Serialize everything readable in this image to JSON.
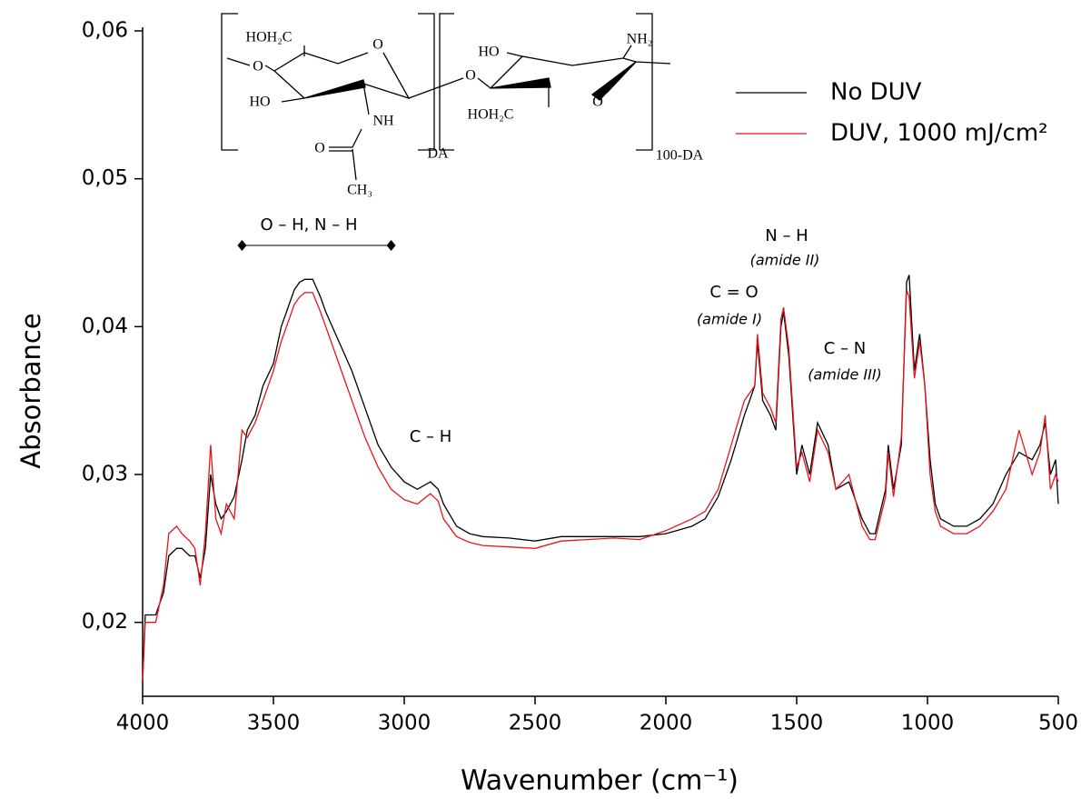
{
  "chart_data": {
    "type": "line",
    "xlabel": "Wavenumber (cm⁻¹)",
    "ylabel": "Absorbance",
    "x": [
      4000,
      3990,
      3950,
      3920,
      3900,
      3870,
      3850,
      3820,
      3800,
      3780,
      3760,
      3740,
      3720,
      3700,
      3680,
      3650,
      3620,
      3600,
      3570,
      3540,
      3500,
      3470,
      3450,
      3420,
      3400,
      3380,
      3350,
      3320,
      3300,
      3250,
      3200,
      3150,
      3100,
      3050,
      3000,
      2950,
      2900,
      2870,
      2850,
      2800,
      2750,
      2700,
      2600,
      2500,
      2400,
      2300,
      2200,
      2100,
      2000,
      1900,
      1850,
      1800,
      1750,
      1700,
      1680,
      1660,
      1650,
      1630,
      1600,
      1580,
      1560,
      1550,
      1530,
      1500,
      1480,
      1450,
      1420,
      1380,
      1350,
      1300,
      1250,
      1220,
      1200,
      1160,
      1150,
      1130,
      1100,
      1080,
      1070,
      1050,
      1030,
      1010,
      990,
      970,
      950,
      900,
      850,
      800,
      750,
      700,
      650,
      600,
      570,
      550,
      530,
      510,
      500
    ],
    "series": [
      {
        "name": "No DUV",
        "color": "#000000",
        "values": [
          0.016,
          0.0205,
          0.0205,
          0.022,
          0.0245,
          0.025,
          0.025,
          0.0245,
          0.0245,
          0.023,
          0.025,
          0.03,
          0.028,
          0.027,
          0.0275,
          0.0285,
          0.031,
          0.033,
          0.034,
          0.036,
          0.0375,
          0.04,
          0.041,
          0.0425,
          0.043,
          0.0432,
          0.0432,
          0.042,
          0.041,
          0.039,
          0.037,
          0.0345,
          0.032,
          0.0305,
          0.0295,
          0.029,
          0.0295,
          0.029,
          0.028,
          0.0265,
          0.026,
          0.0258,
          0.0257,
          0.0255,
          0.0258,
          0.0258,
          0.0258,
          0.0258,
          0.026,
          0.0265,
          0.027,
          0.0285,
          0.031,
          0.034,
          0.035,
          0.036,
          0.039,
          0.035,
          0.034,
          0.033,
          0.04,
          0.041,
          0.038,
          0.03,
          0.032,
          0.03,
          0.0335,
          0.032,
          0.029,
          0.0295,
          0.027,
          0.026,
          0.026,
          0.029,
          0.032,
          0.029,
          0.032,
          0.043,
          0.0435,
          0.037,
          0.0395,
          0.036,
          0.031,
          0.028,
          0.027,
          0.0265,
          0.0265,
          0.027,
          0.028,
          0.03,
          0.0315,
          0.031,
          0.032,
          0.0335,
          0.03,
          0.031,
          0.028
        ]
      },
      {
        "name": "DUV, 1000 mJ/cm²",
        "color": "#e8141b",
        "values": [
          0.016,
          0.02,
          0.02,
          0.0225,
          0.026,
          0.0265,
          0.026,
          0.0255,
          0.025,
          0.0225,
          0.026,
          0.032,
          0.027,
          0.026,
          0.028,
          0.027,
          0.033,
          0.0325,
          0.0335,
          0.035,
          0.037,
          0.039,
          0.04,
          0.0415,
          0.042,
          0.0423,
          0.0423,
          0.041,
          0.04,
          0.0375,
          0.035,
          0.0325,
          0.0305,
          0.029,
          0.0283,
          0.028,
          0.0287,
          0.0282,
          0.027,
          0.0258,
          0.0254,
          0.0252,
          0.0251,
          0.025,
          0.0255,
          0.0256,
          0.0257,
          0.0256,
          0.0262,
          0.027,
          0.0275,
          0.029,
          0.032,
          0.035,
          0.0355,
          0.036,
          0.0395,
          0.0355,
          0.0345,
          0.0335,
          0.0405,
          0.0413,
          0.0385,
          0.0305,
          0.0315,
          0.0295,
          0.033,
          0.0315,
          0.029,
          0.03,
          0.0265,
          0.0256,
          0.0256,
          0.0285,
          0.0315,
          0.0285,
          0.0325,
          0.0425,
          0.042,
          0.0365,
          0.039,
          0.036,
          0.03,
          0.0275,
          0.0265,
          0.026,
          0.026,
          0.0265,
          0.0275,
          0.029,
          0.033,
          0.03,
          0.0315,
          0.034,
          0.029,
          0.03,
          0.0295
        ]
      }
    ],
    "xlim": [
      4000,
      500
    ],
    "xticks": [
      4000,
      3500,
      3000,
      2500,
      2000,
      1500,
      1000,
      500
    ],
    "ylim": [
      0.015,
      0.06
    ],
    "yticks": [
      {
        "value": 0.02,
        "label": "0,02"
      },
      {
        "value": 0.03,
        "label": "0,03"
      },
      {
        "value": 0.04,
        "label": "0,04"
      },
      {
        "value": 0.05,
        "label": "0,05"
      },
      {
        "value": 0.06,
        "label": "0,06"
      }
    ],
    "grid": false,
    "legend": "upper right",
    "annotations": [
      "O – H, N – H",
      "C – H",
      "C = O",
      "(amide I)",
      "N – H",
      "(amide II)",
      "C – N",
      "(amide III)"
    ],
    "structure": [
      "HOH₂C",
      "O",
      "HO",
      "O",
      "NH",
      "O",
      "CH₃",
      "DA",
      "O",
      "HO",
      "NH₂",
      "HOH₂C",
      "O",
      "100-DA"
    ]
  }
}
